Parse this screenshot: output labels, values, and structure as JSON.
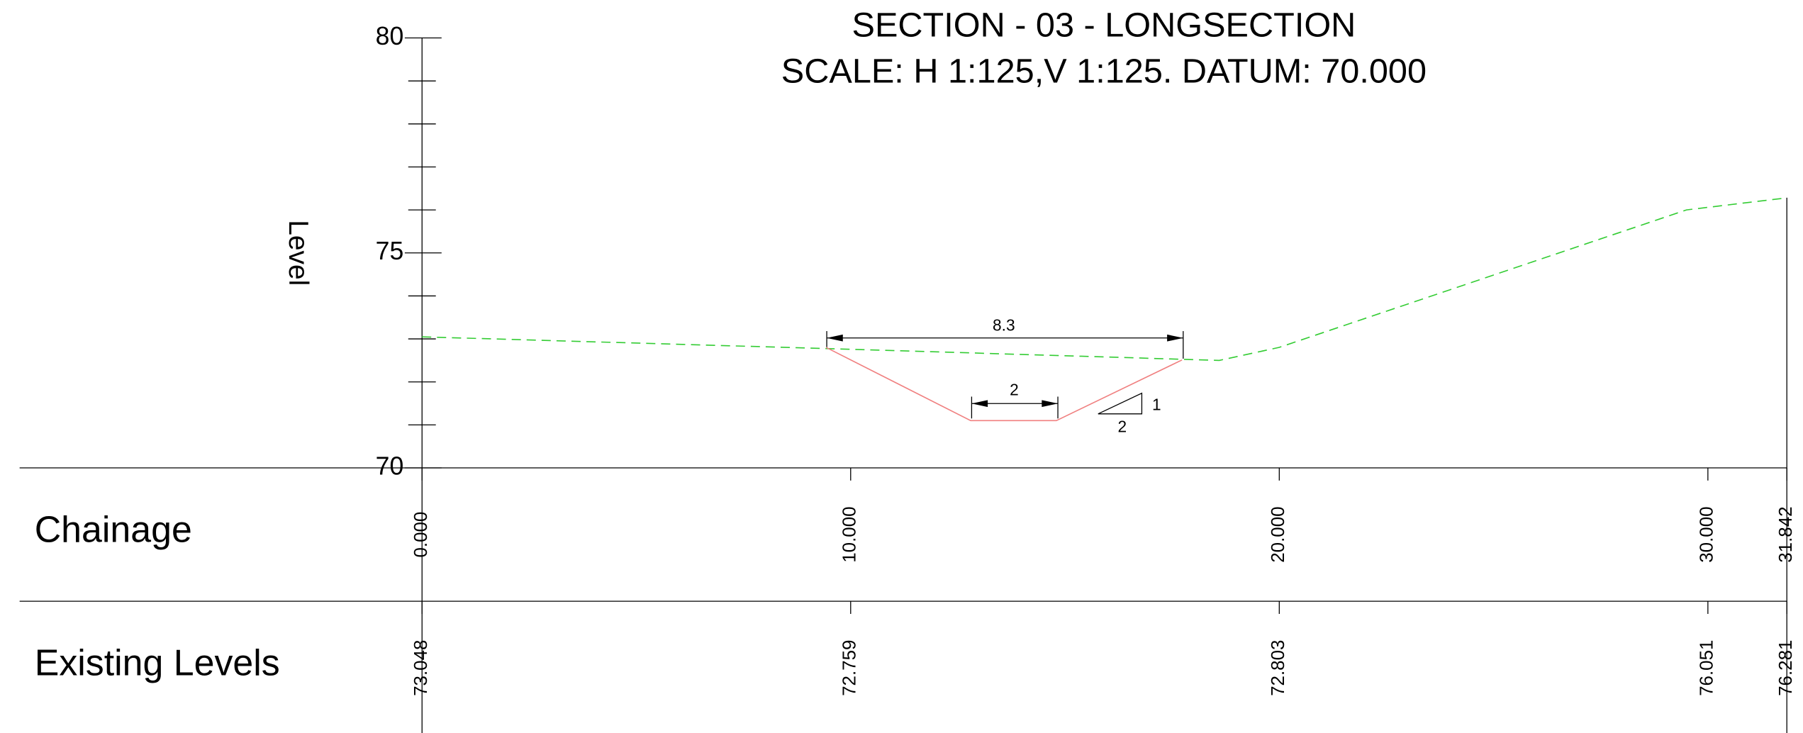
{
  "chart_data": {
    "type": "line",
    "title": "SECTION - 03 - LONGSECTION",
    "subtitle": "SCALE: H 1:125,V 1:125. DATUM: 70.000",
    "y_label": "Level",
    "ylim": [
      70,
      80
    ],
    "yticks": [
      70,
      75,
      80
    ],
    "yminorticks": [
      71,
      72,
      73,
      74,
      76,
      77,
      78,
      79
    ],
    "xlim": [
      0,
      31.842
    ],
    "xticks": [
      {
        "value": 0,
        "label": "0.000"
      },
      {
        "value": 10,
        "label": "10.000"
      },
      {
        "value": 20,
        "label": "20.000"
      },
      {
        "value": 30,
        "label": "30.000"
      },
      {
        "value": 31.842,
        "label": "31.842"
      }
    ],
    "series": [
      {
        "color": "#33cc33",
        "dashed": true,
        "x": [
          0,
          10,
          18.6,
          20,
          29.5,
          31.842
        ],
        "values": [
          73.048,
          72.759,
          72.5,
          72.803,
          76.0,
          76.281
        ]
      },
      {
        "color": "#f08080",
        "dashed": false,
        "x": [
          9.43,
          12.8,
          14.8,
          17.73
        ],
        "values": [
          72.8,
          71.1,
          71.1,
          72.51
        ]
      }
    ],
    "annotations": {
      "top_width": "8.3",
      "bottom_width": "2",
      "slope_rise": "1",
      "slope_run": "2"
    },
    "table": {
      "rows": [
        {
          "label": "Chainage"
        },
        {
          "label": "Existing Levels",
          "x": [
            0,
            10,
            20,
            30,
            31.842
          ],
          "values": [
            73.048,
            72.759,
            72.803,
            76.051,
            76.281
          ]
        }
      ]
    }
  }
}
